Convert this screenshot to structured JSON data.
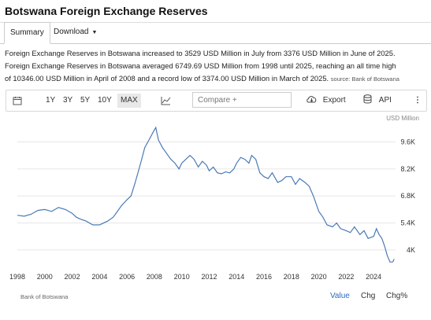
{
  "page": {
    "title": "Botswana Foreign Exchange Reserves",
    "tabs": [
      {
        "label": "Summary",
        "active": true
      },
      {
        "label": "Download",
        "active": false
      }
    ],
    "description_line1": "Foreign Exchange Reserves in Botswana increased to 3529 USD Million in July from 3376 USD Million in June of 2025.",
    "description_line2": "Foreign Exchange Reserves in Botswana averaged 6749.69 USD Million from 1998 until 2025, reaching an all time high",
    "description_line3": "of 10346.00 USD Million in April of 2008 and a record low of 3374.00 USD Million in March of 2025.",
    "source_inline": "source: Bank of Botswana"
  },
  "toolbar": {
    "calendar_icon": "calendar-icon",
    "ranges": [
      "1Y",
      "3Y",
      "5Y",
      "10Y",
      "MAX"
    ],
    "active_range": "MAX",
    "chart_type_icon": "line-chart-icon",
    "compare_placeholder": "Compare +",
    "export_label": "Export",
    "export_icon": "cloud-download-icon",
    "api_label": "API",
    "api_icon": "database-icon",
    "more_icon": "vertical-dots-icon"
  },
  "footer": {
    "source": "Bank of Botswana",
    "views": [
      "Value",
      "Chg",
      "Chg%"
    ],
    "active_view": "Value"
  },
  "colors": {
    "line": "#4a7ab5",
    "active_view": "#2a6bbf",
    "grid": "#e6e6e6"
  },
  "chart_data": {
    "type": "line",
    "title": "",
    "unit_label": "USD Million",
    "x_tick_labels": [
      "1998",
      "2000",
      "2002",
      "2004",
      "2006",
      "2008",
      "2010",
      "2012",
      "2014",
      "2016",
      "2018",
      "2020",
      "2022",
      "2024"
    ],
    "y_tick_labels": [
      "4K",
      "5.4K",
      "6.8K",
      "8.2K",
      "9.6K"
    ],
    "y_ticks": [
      4000,
      5400,
      6800,
      8200,
      9600
    ],
    "xlim": [
      1998,
      2025.6
    ],
    "ylim": [
      3100,
      10600
    ],
    "y_axis_position": "right",
    "grid": "horizontal",
    "series": [
      {
        "x": [
          1998.0,
          1998.5,
          1999.0,
          1999.5,
          2000.0,
          2000.5,
          2001.0,
          2001.5,
          2002.0,
          2002.3,
          2002.6,
          2003.0,
          2003.5,
          2004.0,
          2004.3,
          2004.6,
          2005.0,
          2005.3,
          2005.6,
          2006.0,
          2006.3,
          2006.6,
          2007.0,
          2007.3,
          2007.6,
          2007.9,
          2008.1,
          2008.3,
          2008.6,
          2008.9,
          2009.2,
          2009.5,
          2009.8,
          2010.0,
          2010.3,
          2010.6,
          2010.9,
          2011.2,
          2011.5,
          2011.8,
          2012.0,
          2012.3,
          2012.6,
          2012.9,
          2013.2,
          2013.5,
          2013.8,
          2014.0,
          2014.3,
          2014.6,
          2014.9,
          2015.1,
          2015.4,
          2015.7,
          2016.0,
          2016.3,
          2016.6,
          2017.0,
          2017.3,
          2017.6,
          2018.0,
          2018.3,
          2018.6,
          2019.0,
          2019.3,
          2019.6,
          2020.0,
          2020.3,
          2020.6,
          2021.0,
          2021.3,
          2021.6,
          2022.0,
          2022.3,
          2022.6,
          2023.0,
          2023.3,
          2023.6,
          2024.0,
          2024.2,
          2024.4,
          2024.6,
          2024.8,
          2025.0,
          2025.2,
          2025.4,
          2025.5
        ],
        "values": [
          5800,
          5750,
          5850,
          6050,
          6100,
          6000,
          6200,
          6100,
          5900,
          5700,
          5600,
          5500,
          5300,
          5300,
          5400,
          5500,
          5700,
          6000,
          6300,
          6600,
          6800,
          7500,
          8500,
          9300,
          9700,
          10100,
          10346,
          9700,
          9300,
          9000,
          8700,
          8500,
          8200,
          8500,
          8700,
          8900,
          8700,
          8300,
          8600,
          8400,
          8100,
          8300,
          8000,
          7950,
          8050,
          8000,
          8200,
          8500,
          8800,
          8700,
          8500,
          8900,
          8700,
          8000,
          7800,
          7700,
          8000,
          7500,
          7600,
          7800,
          7800,
          7400,
          7700,
          7500,
          7300,
          6800,
          6000,
          5700,
          5300,
          5200,
          5400,
          5100,
          5000,
          4900,
          5200,
          4800,
          5000,
          4600,
          4700,
          5100,
          4800,
          4600,
          4200,
          3700,
          3374,
          3380,
          3529
        ]
      }
    ]
  }
}
